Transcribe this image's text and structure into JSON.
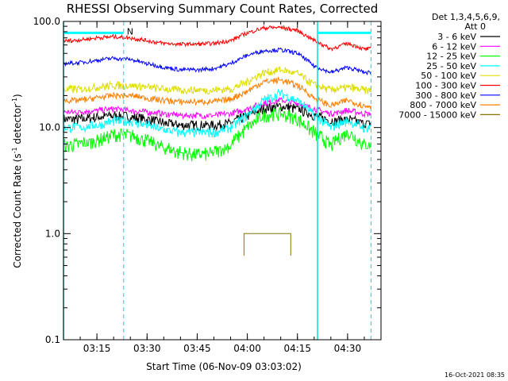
{
  "chart_data": {
    "type": "line",
    "title": "RHESSI Observing Summary Count Rates, Corrected",
    "xlabel": "Start Time (06-Nov-09 03:03:02)",
    "ylabel_main": "Corrected Count Rate (s",
    "ylabel_sup": "-1",
    "ylabel_end": " detector",
    "ylabel_sup2": "-1",
    "ylabel_close": ")",
    "x_unit": "minutes after 03:00 UT",
    "xlim": [
      5,
      100
    ],
    "ylim": [
      0.1,
      100
    ],
    "y_scale": "log",
    "x_ticks": [
      {
        "value": 15,
        "label": "03:15"
      },
      {
        "value": 30,
        "label": "03:30"
      },
      {
        "value": 45,
        "label": "03:45"
      },
      {
        "value": 60,
        "label": "04:00"
      },
      {
        "value": 75,
        "label": "04:15"
      },
      {
        "value": 90,
        "label": "04:30"
      }
    ],
    "y_ticks": [
      {
        "value": 0.1,
        "label": "0.1"
      },
      {
        "value": 1.0,
        "label": "1.0"
      },
      {
        "value": 10.0,
        "label": "10.0"
      },
      {
        "value": 100.0,
        "label": "100.0"
      }
    ],
    "legend_header": [
      "Det 1,3,4,5,6,9,",
      "Att 0"
    ],
    "legend_placement": "right",
    "timestamp": "16-Oct-2021 08:35",
    "marker_label": "N",
    "vlines_dashed": [
      23,
      97
    ],
    "vlines_solid": [
      5,
      81
    ],
    "night_bars": [
      [
        5,
        23
      ],
      [
        81,
        97
      ]
    ],
    "night_level": 78,
    "series": [
      {
        "name": "3 - 6 keV",
        "color": "#000000",
        "x": [
          5,
          10,
          15,
          20,
          25,
          30,
          35,
          40,
          45,
          50,
          55,
          60,
          65,
          70,
          75,
          80,
          85,
          90,
          95,
          97
        ],
        "y": [
          12,
          12,
          12.5,
          13,
          12.5,
          12,
          11,
          10.5,
          10.5,
          10.5,
          11,
          13,
          15,
          16,
          15,
          13,
          11.5,
          12,
          11,
          11
        ],
        "noise": 0.05
      },
      {
        "name": "6 - 12 keV",
        "color": "#ff00ff",
        "x": [
          5,
          10,
          15,
          20,
          25,
          30,
          35,
          40,
          45,
          50,
          55,
          60,
          65,
          70,
          75,
          80,
          85,
          90,
          95,
          97
        ],
        "y": [
          14,
          14,
          14.5,
          15,
          14.5,
          14,
          13.5,
          13,
          13,
          13,
          13.5,
          15,
          17,
          18,
          17,
          15,
          13.5,
          14.5,
          13.5,
          13.5
        ],
        "noise": 0.03
      },
      {
        "name": "12 - 25 keV",
        "color": "#00ff00",
        "x": [
          5,
          10,
          15,
          20,
          25,
          30,
          35,
          40,
          45,
          50,
          55,
          60,
          65,
          70,
          75,
          80,
          85,
          90,
          95,
          97
        ],
        "y": [
          6.8,
          7,
          7.5,
          8.5,
          8.5,
          7.5,
          6.5,
          5.8,
          5.5,
          5.8,
          6.8,
          10,
          13,
          13.5,
          12,
          9,
          6.8,
          9,
          6.8,
          6.8
        ],
        "noise": 0.07
      },
      {
        "name": "25 - 50 keV",
        "color": "#00ffff",
        "x": [
          5,
          10,
          15,
          20,
          25,
          30,
          35,
          40,
          45,
          50,
          55,
          60,
          65,
          70,
          75,
          80,
          85,
          90,
          95,
          97
        ],
        "y": [
          10,
          10,
          10.5,
          11.5,
          11.5,
          10.5,
          9.5,
          9,
          9,
          9,
          10,
          13,
          18,
          21,
          18,
          13,
          10,
          11.5,
          10,
          10
        ],
        "noise": 0.05
      },
      {
        "name": "50 - 100 keV",
        "color": "#dddd00",
        "x": [
          5,
          10,
          15,
          20,
          25,
          30,
          35,
          40,
          45,
          50,
          55,
          60,
          65,
          70,
          75,
          80,
          85,
          90,
          95,
          97
        ],
        "y": [
          23,
          23,
          24,
          25,
          25,
          24,
          23,
          22.5,
          22.5,
          22.5,
          23,
          27,
          33,
          35,
          32,
          25,
          22.5,
          24,
          22.5,
          22.5
        ],
        "noise": 0.04
      },
      {
        "name": "100 - 300 keV",
        "color": "#ff0000",
        "x": [
          5,
          10,
          15,
          20,
          25,
          30,
          35,
          40,
          45,
          50,
          55,
          60,
          65,
          70,
          75,
          80,
          85,
          90,
          95,
          97
        ],
        "y": [
          65,
          67,
          70,
          72,
          70,
          66,
          62,
          61,
          61,
          62,
          66,
          78,
          87,
          88,
          82,
          66,
          55,
          62,
          55,
          55
        ],
        "noise": 0.02
      },
      {
        "name": "300 - 800 keV",
        "color": "#0000ff",
        "x": [
          5,
          10,
          15,
          20,
          25,
          30,
          35,
          40,
          45,
          50,
          55,
          60,
          65,
          70,
          75,
          80,
          85,
          90,
          95,
          97
        ],
        "y": [
          40,
          41,
          43,
          45,
          44,
          40,
          37,
          35,
          35,
          36,
          40,
          48,
          53,
          54,
          50,
          38,
          33,
          37,
          33,
          33
        ],
        "noise": 0.02
      },
      {
        "name": "800 - 7000 keV",
        "color": "#ff8000",
        "x": [
          5,
          10,
          15,
          20,
          25,
          30,
          35,
          40,
          45,
          50,
          55,
          60,
          65,
          70,
          75,
          80,
          85,
          90,
          95,
          97
        ],
        "y": [
          18,
          18,
          19,
          20,
          20,
          19,
          18,
          17.5,
          17.5,
          17.5,
          18.5,
          22,
          27,
          28,
          25,
          19,
          16,
          18,
          16,
          16
        ],
        "noise": 0.03
      },
      {
        "name": "7000 - 15000 keV",
        "color": "#8b7500",
        "x": [
          59,
          59,
          60,
          73,
          73
        ],
        "y": [
          0.62,
          1.0,
          1.0,
          1.0,
          0.62
        ],
        "noise": 0
      }
    ]
  }
}
